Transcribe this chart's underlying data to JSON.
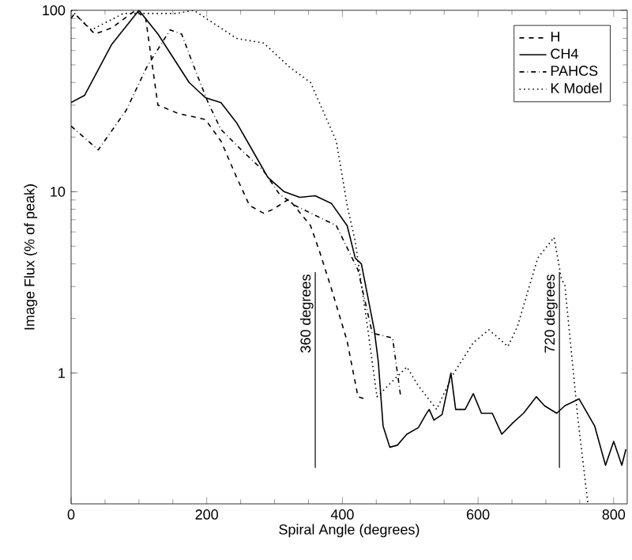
{
  "chart_data": {
    "type": "line",
    "xlabel": "Spiral Angle (degrees)",
    "ylabel": "Image Flux (% of peak)",
    "log": "y",
    "xlim": [
      0,
      820
    ],
    "ylim": [
      0.19,
      100
    ],
    "xticks": [
      0,
      200,
      400,
      600,
      800
    ],
    "yticks": [
      1,
      10,
      100
    ],
    "legend": "top right",
    "grid": false,
    "series": [
      {
        "name": "H",
        "color": "#000000",
        "line_style": "dashed",
        "x": [
          0,
          5,
          35,
          60,
          95,
          110,
          128,
          158,
          198,
          221,
          244,
          263,
          284,
          298,
          321,
          353,
          367,
          384,
          407,
          423,
          433
        ],
        "values": [
          90,
          96,
          74,
          80,
          100,
          90,
          30,
          27,
          25,
          19,
          12,
          8.4,
          7.6,
          8,
          9.1,
          6.5,
          4.6,
          2.9,
          1.5,
          0.74,
          0.72
        ]
      },
      {
        "name": "CH4",
        "color": "#000000",
        "line_style": "solid",
        "x": [
          0,
          20,
          60,
          100,
          128,
          174,
          198,
          221,
          244,
          267,
          290,
          314,
          337,
          360,
          384,
          407,
          419,
          428,
          447,
          453,
          460,
          470,
          481,
          495,
          512,
          523,
          528,
          535,
          547,
          560,
          567,
          581,
          593,
          605,
          621,
          635,
          651,
          667,
          686,
          698,
          716,
          728,
          749,
          772,
          788,
          800,
          812,
          818
        ],
        "values": [
          31,
          34,
          65,
          100,
          74,
          40,
          33,
          31,
          24,
          17,
          12,
          10,
          9.3,
          9.5,
          8.6,
          6.5,
          4.3,
          4,
          1.73,
          1.15,
          0.51,
          0.39,
          0.4,
          0.46,
          0.5,
          0.59,
          0.63,
          0.55,
          0.59,
          1.0,
          0.63,
          0.63,
          0.77,
          0.6,
          0.6,
          0.46,
          0.53,
          0.6,
          0.74,
          0.66,
          0.6,
          0.66,
          0.72,
          0.51,
          0.31,
          0.42,
          0.31,
          0.38
        ]
      },
      {
        "name": "PAHCS",
        "color": "#000000",
        "line_style": "dashdotted",
        "x": [
          0,
          40,
          81,
          112,
          146,
          163,
          181,
          202,
          221,
          251,
          284,
          307,
          330,
          360,
          391,
          423,
          444,
          474,
          486
        ],
        "values": [
          23,
          17,
          28,
          49,
          78,
          74,
          49,
          31,
          22,
          17,
          13,
          9.7,
          8.4,
          7.4,
          6.5,
          3.7,
          1.66,
          1.56,
          0.74
        ]
      },
      {
        "name": "K Model",
        "color": "#000000",
        "line_style": "dotted",
        "x": [
          0,
          30,
          77,
          155,
          181,
          244,
          284,
          321,
          353,
          391,
          407,
          419,
          437,
          451,
          467,
          495,
          512,
          539,
          563,
          593,
          616,
          630,
          644,
          658,
          674,
          688,
          712,
          723,
          728,
          747,
          762
        ],
        "values": [
          100,
          78,
          96,
          96,
          100,
          70,
          66,
          49,
          40,
          19,
          8.4,
          5.3,
          1.8,
          0.74,
          0.85,
          1.08,
          0.85,
          0.63,
          0.98,
          1.47,
          1.73,
          1.56,
          1.4,
          1.8,
          2.87,
          4.3,
          5.6,
          3.3,
          3.05,
          0.57,
          0.19
        ]
      }
    ],
    "ref_lines": [
      {
        "axis": "x",
        "value": 360,
        "label": "360 degrees",
        "color": "#000000"
      },
      {
        "axis": "x",
        "value": 720,
        "label": "720 degrees",
        "color": "#000000"
      }
    ]
  }
}
